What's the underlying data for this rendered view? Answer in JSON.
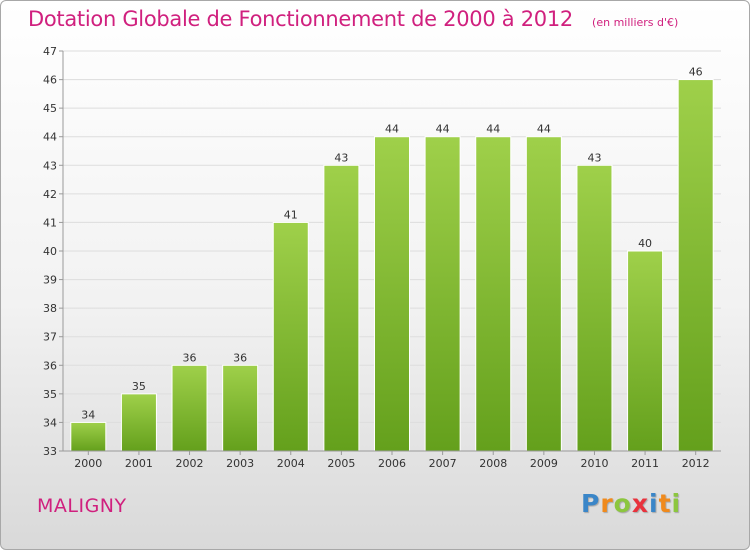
{
  "header": {
    "title": "Dotation Globale de Fonctionnement de 2000 à 2012",
    "unit": "(en milliers d'€)"
  },
  "footer": {
    "commune": "MALIGNY",
    "logo_letters": [
      "P",
      "r",
      "o",
      "x",
      "i",
      "t",
      "i"
    ],
    "logo_colors": [
      "#3a86c8",
      "#f08a1c",
      "#8cc63f",
      "#e8323c",
      "#3a86c8",
      "#f08a1c",
      "#8cc63f"
    ]
  },
  "colors": {
    "bar_light": "#9fd04a",
    "bar_dark": "#64a01c",
    "axis": "#9a9a9a",
    "grid": "#dddddd",
    "text": "#333333"
  },
  "chart_data": {
    "type": "bar",
    "categories": [
      "2000",
      "2001",
      "2002",
      "2003",
      "2004",
      "2005",
      "2006",
      "2007",
      "2008",
      "2009",
      "2010",
      "2011",
      "2012"
    ],
    "values": [
      34,
      35,
      36,
      36,
      41,
      43,
      44,
      44,
      44,
      44,
      43,
      40,
      46
    ],
    "data_labels": [
      "34",
      "35",
      "36",
      "36",
      "41",
      "43",
      "44",
      "44",
      "44",
      "44",
      "43",
      "40",
      "46"
    ],
    "ylim": [
      33,
      47
    ],
    "yticks": [
      33,
      34,
      35,
      36,
      37,
      38,
      39,
      40,
      41,
      42,
      43,
      44,
      45,
      46,
      47
    ],
    "grid": true,
    "legend": "none"
  }
}
